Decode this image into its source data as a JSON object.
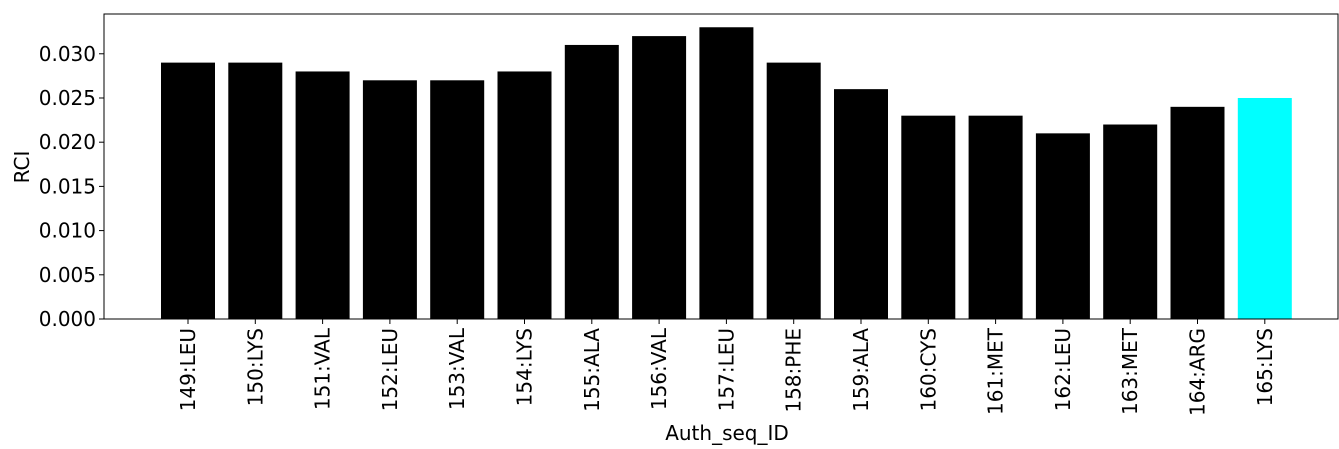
{
  "chart_data": {
    "type": "bar",
    "title": "",
    "xlabel": "Auth_seq_ID",
    "ylabel": "RCI",
    "ylim": [
      0,
      0.0345
    ],
    "yticks": [
      0.0,
      0.005,
      0.01,
      0.015,
      0.02,
      0.025,
      0.03
    ],
    "ytick_labels": [
      "0.000",
      "0.005",
      "0.010",
      "0.015",
      "0.020",
      "0.025",
      "0.030"
    ],
    "categories": [
      "149:LEU",
      "150:LYS",
      "151:VAL",
      "152:LEU",
      "153:VAL",
      "154:LYS",
      "155:ALA",
      "156:VAL",
      "157:LEU",
      "158:PHE",
      "159:ALA",
      "160:CYS",
      "161:MET",
      "162:LEU",
      "163:MET",
      "164:ARG",
      "165:LYS"
    ],
    "values": [
      0.029,
      0.029,
      0.028,
      0.027,
      0.027,
      0.028,
      0.031,
      0.032,
      0.033,
      0.029,
      0.026,
      0.023,
      0.023,
      0.021,
      0.022,
      0.024,
      0.025
    ],
    "colors": [
      "#000000",
      "#000000",
      "#000000",
      "#000000",
      "#000000",
      "#000000",
      "#000000",
      "#000000",
      "#000000",
      "#000000",
      "#000000",
      "#000000",
      "#000000",
      "#000000",
      "#000000",
      "#000000",
      "#00ffff"
    ],
    "grid": false,
    "legend": "none"
  }
}
